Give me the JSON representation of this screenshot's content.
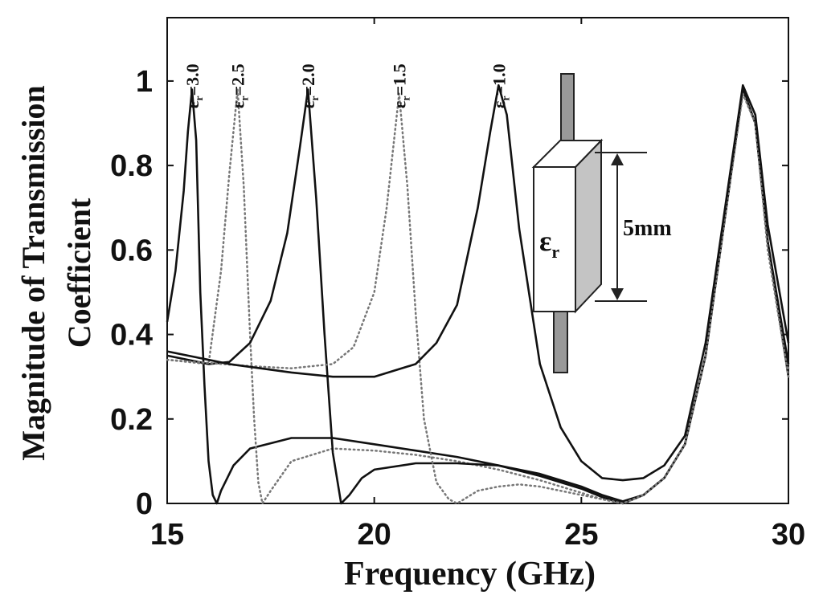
{
  "chart_data": {
    "type": "line",
    "title": "",
    "xlabel": "Frequency (GHz)",
    "ylabel": [
      "Magnitude of Transmission",
      "Coefficient"
    ],
    "xlim": [
      15,
      30
    ],
    "ylim": [
      0,
      1.15
    ],
    "xticks": [
      15,
      20,
      25,
      30
    ],
    "xtick_labels": [
      "15",
      "20",
      "25",
      "30"
    ],
    "yticks": [
      0,
      0.2,
      0.4,
      0.6,
      0.8,
      1
    ],
    "ytick_labels": [
      "0",
      "0.2",
      "0.4",
      "0.6",
      "0.8",
      "1"
    ],
    "grid": false,
    "legend": "none",
    "peak_labels": [
      {
        "sub": "r",
        "value": "=3.0",
        "x": 15.6
      },
      {
        "sub": "r",
        "value": "=2.5",
        "x": 16.7
      },
      {
        "sub": "r",
        "value": "=2.0",
        "x": 18.4
      },
      {
        "sub": "r",
        "value": "=1.5",
        "x": 20.6
      },
      {
        "sub": "r",
        "value": "=1.0",
        "x": 23.0
      }
    ],
    "series": [
      {
        "style": "solid",
        "x": [
          15,
          15.2,
          15.4,
          15.5,
          15.6,
          15.7,
          15.8,
          15.9,
          16.0,
          16.1,
          16.2,
          16.3,
          16.6,
          17.0,
          18.0,
          19.0,
          20.0,
          21.0,
          22.0,
          23.0,
          24.0,
          25.0,
          25.5,
          26.0,
          26.5,
          27.0,
          27.5,
          28.0,
          28.5,
          28.9,
          29.2,
          29.5,
          30
        ],
        "y": [
          0.43,
          0.55,
          0.74,
          0.88,
          0.98,
          0.86,
          0.5,
          0.28,
          0.1,
          0.02,
          0.0,
          0.03,
          0.09,
          0.13,
          0.155,
          0.155,
          0.14,
          0.125,
          0.11,
          0.09,
          0.065,
          0.035,
          0.015,
          0.0,
          0.02,
          0.06,
          0.14,
          0.35,
          0.7,
          0.98,
          0.9,
          0.62,
          0.3
        ]
      },
      {
        "style": "dotted",
        "x": [
          15,
          16.0,
          16.3,
          16.5,
          16.7,
          16.85,
          17.0,
          17.1,
          17.2,
          17.3,
          17.5,
          18.0,
          19.0,
          20.0,
          21.0,
          22.0,
          23.0,
          24.0,
          25.0,
          25.5,
          26.0,
          26.5,
          27.0,
          27.5,
          28.0,
          28.5,
          28.9,
          29.2,
          29.5,
          30
        ],
        "y": [
          0.34,
          0.33,
          0.55,
          0.78,
          0.98,
          0.75,
          0.4,
          0.2,
          0.05,
          0.0,
          0.03,
          0.1,
          0.13,
          0.125,
          0.115,
          0.1,
          0.08,
          0.055,
          0.025,
          0.01,
          0.0,
          0.02,
          0.06,
          0.14,
          0.35,
          0.7,
          0.97,
          0.9,
          0.62,
          0.32
        ]
      },
      {
        "style": "solid",
        "x": [
          15,
          16.0,
          16.5,
          17.0,
          17.5,
          17.9,
          18.2,
          18.4,
          18.6,
          18.8,
          19.0,
          19.2,
          19.4,
          19.7,
          20.0,
          21.0,
          22.0,
          23.0,
          24.0,
          25.0,
          25.5,
          26.0,
          26.5,
          27.0,
          27.5,
          28.0,
          28.5,
          28.9,
          29.2,
          29.5,
          30
        ],
        "y": [
          0.35,
          0.33,
          0.335,
          0.38,
          0.48,
          0.64,
          0.84,
          0.98,
          0.72,
          0.4,
          0.12,
          0.0,
          0.02,
          0.06,
          0.08,
          0.095,
          0.095,
          0.09,
          0.07,
          0.04,
          0.02,
          0.005,
          0.02,
          0.06,
          0.14,
          0.35,
          0.7,
          0.98,
          0.9,
          0.62,
          0.33
        ]
      },
      {
        "style": "dotted",
        "x": [
          15,
          17.0,
          18.0,
          19.0,
          19.5,
          20.0,
          20.3,
          20.6,
          20.8,
          21.0,
          21.2,
          21.5,
          21.8,
          22.0,
          22.5,
          23.0,
          23.5,
          24.0,
          25.0,
          25.5,
          26.0,
          26.5,
          27.0,
          27.5,
          28.0,
          28.5,
          28.9,
          29.2,
          29.5,
          30
        ],
        "y": [
          0.34,
          0.325,
          0.32,
          0.33,
          0.37,
          0.5,
          0.7,
          0.97,
          0.75,
          0.45,
          0.2,
          0.05,
          0.01,
          0.0,
          0.03,
          0.04,
          0.045,
          0.04,
          0.02,
          0.01,
          0.0,
          0.02,
          0.06,
          0.14,
          0.35,
          0.7,
          0.97,
          0.9,
          0.6,
          0.3
        ]
      },
      {
        "style": "solid",
        "x": [
          15,
          16.5,
          18.0,
          19.0,
          20.0,
          21.0,
          21.5,
          22.0,
          22.5,
          22.8,
          23.0,
          23.2,
          23.5,
          24.0,
          24.5,
          25.0,
          25.5,
          26.0,
          26.5,
          27.0,
          27.5,
          28.0,
          28.5,
          28.9,
          29.2,
          29.5,
          30
        ],
        "y": [
          0.36,
          0.33,
          0.31,
          0.3,
          0.3,
          0.33,
          0.38,
          0.47,
          0.7,
          0.88,
          0.99,
          0.92,
          0.65,
          0.33,
          0.18,
          0.1,
          0.06,
          0.055,
          0.06,
          0.09,
          0.16,
          0.38,
          0.72,
          0.99,
          0.92,
          0.66,
          0.38
        ]
      }
    ],
    "inset": {
      "symbol": "ε",
      "sub": "r",
      "dimension": "5mm"
    }
  }
}
